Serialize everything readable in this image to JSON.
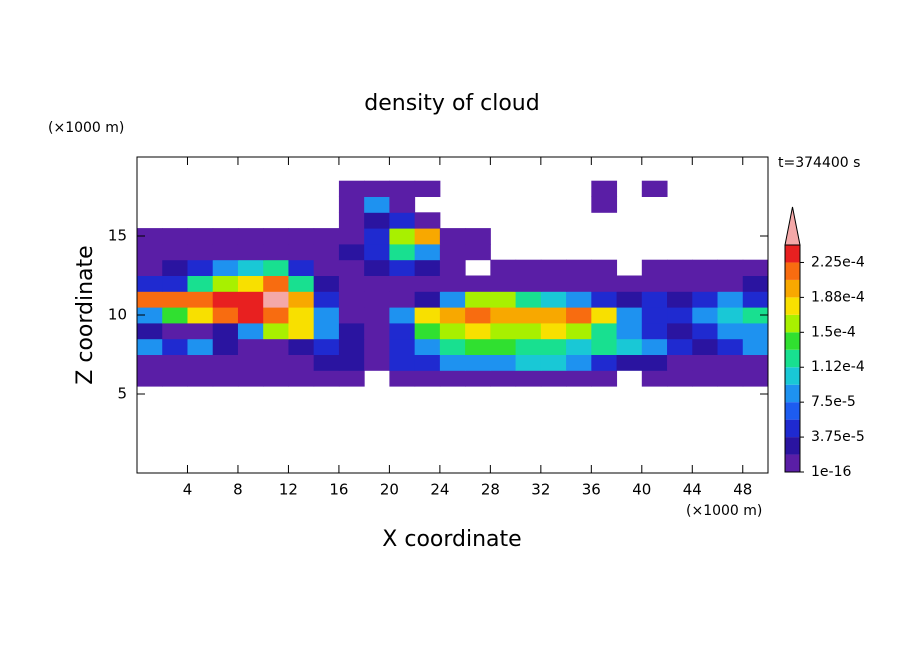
{
  "chart_data": {
    "type": "contour",
    "title": "density of cloud",
    "xlabel": "X coordinate",
    "ylabel": "Z coordinate",
    "xunit": "(×1000 m)",
    "yunit": "(×1000 m)",
    "annotation": "t=374400 s",
    "xlim": [
      0,
      50
    ],
    "xticks": [
      4,
      8,
      12,
      16,
      20,
      24,
      28,
      32,
      36,
      40,
      44,
      48
    ],
    "ylim": [
      0,
      20
    ],
    "yticks": [
      5,
      10,
      15
    ],
    "x": [
      1,
      3,
      5,
      7,
      9,
      11,
      13,
      15,
      17,
      19,
      21,
      23,
      25,
      27,
      29,
      31,
      33,
      35,
      37,
      39,
      41,
      43,
      45,
      47,
      49
    ],
    "y": [
      6,
      7,
      8,
      9,
      10,
      11,
      12,
      13,
      14,
      15,
      16,
      17,
      18
    ],
    "z": [
      [
        1e-05,
        1e-05,
        1e-05,
        1e-05,
        1e-05,
        1e-05,
        1e-05,
        1e-05,
        1e-05,
        null,
        1e-05,
        1e-05,
        1e-05,
        1e-05,
        1e-05,
        1e-05,
        1e-05,
        1e-05,
        1e-05,
        null,
        1e-05,
        1e-05,
        1e-05,
        1e-05,
        1e-05
      ],
      [
        1e-05,
        1e-05,
        1e-05,
        1e-05,
        1e-05,
        1e-05,
        1e-05,
        3e-05,
        3e-05,
        1e-05,
        5e-05,
        5e-05,
        8e-05,
        8e-05,
        8e-05,
        0.0001,
        0.0001,
        8e-05,
        5e-05,
        3e-05,
        3e-05,
        1e-05,
        1e-05,
        1e-05,
        1e-05
      ],
      [
        8e-05,
        5e-05,
        8e-05,
        3e-05,
        1e-05,
        1e-05,
        3e-05,
        5e-05,
        3e-05,
        1e-05,
        5e-05,
        8e-05,
        0.00012,
        0.00014,
        0.00014,
        0.00012,
        0.00012,
        0.0001,
        0.00012,
        0.0001,
        8e-05,
        5e-05,
        3e-05,
        5e-05,
        8e-05
      ],
      [
        3e-05,
        1e-05,
        1e-05,
        3e-05,
        8e-05,
        0.00016,
        0.00018,
        8e-05,
        3e-05,
        1e-05,
        5e-05,
        0.00014,
        0.00016,
        0.00018,
        0.00016,
        0.00016,
        0.00018,
        0.00016,
        0.00012,
        8e-05,
        5e-05,
        3e-05,
        5e-05,
        8e-05,
        8e-05
      ],
      [
        8e-05,
        0.00014,
        0.00018,
        0.00022,
        0.00023,
        0.00022,
        0.00018,
        8e-05,
        1e-05,
        1e-05,
        8e-05,
        0.00018,
        0.0002,
        0.00022,
        0.0002,
        0.0002,
        0.0002,
        0.00022,
        0.00018,
        8e-05,
        5e-05,
        5e-05,
        8e-05,
        0.0001,
        0.00012
      ],
      [
        0.00022,
        0.00022,
        0.00022,
        0.00023,
        0.00023,
        0.00025,
        0.0002,
        5e-05,
        1e-05,
        1e-05,
        1e-05,
        3e-05,
        8e-05,
        0.00016,
        0.00016,
        0.00012,
        0.0001,
        8e-05,
        5e-05,
        3e-05,
        5e-05,
        3e-05,
        5e-05,
        8e-05,
        5e-05
      ],
      [
        5e-05,
        5e-05,
        0.00012,
        0.00016,
        0.00018,
        0.00022,
        0.00012,
        3e-05,
        1e-05,
        1e-05,
        1e-05,
        1e-05,
        1e-05,
        1e-05,
        1e-05,
        1e-05,
        1e-05,
        1e-05,
        1e-05,
        1e-05,
        1e-05,
        1e-05,
        1e-05,
        1e-05,
        3e-05
      ],
      [
        1e-05,
        3e-05,
        5e-05,
        8e-05,
        0.0001,
        0.00012,
        5e-05,
        1e-05,
        1e-05,
        3e-05,
        5e-05,
        3e-05,
        1e-05,
        null,
        1e-05,
        1e-05,
        1e-05,
        1e-05,
        1e-05,
        null,
        1e-05,
        1e-05,
        1e-05,
        1e-05,
        1e-05
      ],
      [
        1e-05,
        1e-05,
        1e-05,
        1e-05,
        1e-05,
        1e-05,
        1e-05,
        1e-05,
        3e-05,
        5e-05,
        0.00012,
        8e-05,
        1e-05,
        1e-05,
        null,
        null,
        null,
        null,
        null,
        null,
        null,
        null,
        null,
        null,
        null
      ],
      [
        1e-05,
        1e-05,
        1e-05,
        1e-05,
        1e-05,
        1e-05,
        1e-05,
        1e-05,
        1e-05,
        5e-05,
        0.00016,
        0.0002,
        1e-05,
        1e-05,
        null,
        null,
        null,
        null,
        null,
        null,
        null,
        null,
        null,
        null,
        null
      ],
      [
        null,
        null,
        null,
        null,
        null,
        null,
        null,
        null,
        1e-05,
        3e-05,
        5e-05,
        1e-05,
        null,
        null,
        null,
        null,
        null,
        null,
        null,
        null,
        null,
        null,
        null,
        null,
        null
      ],
      [
        null,
        null,
        null,
        null,
        null,
        null,
        null,
        null,
        1e-05,
        8e-05,
        1e-05,
        null,
        null,
        null,
        null,
        null,
        null,
        null,
        1e-05,
        null,
        null,
        null,
        null,
        null,
        null
      ],
      [
        null,
        null,
        null,
        null,
        null,
        null,
        null,
        null,
        1e-05,
        1e-05,
        1e-05,
        1e-05,
        null,
        null,
        null,
        null,
        null,
        null,
        1e-05,
        null,
        1e-05,
        null,
        null,
        null,
        null
      ]
    ],
    "levels": [
      1e-16,
      1.875e-05,
      3.75e-05,
      5.625e-05,
      7.5e-05,
      9.375e-05,
      0.0001125,
      0.00013125,
      0.00015,
      0.00016875,
      0.0001875,
      0.00020625,
      0.000225,
      0.00024375
    ],
    "colors": [
      "#5a1ea6",
      "#2a14a0",
      "#1f2ad0",
      "#1d5cf0",
      "#1e92f0",
      "#19c8d6",
      "#18e090",
      "#30e030",
      "#a8f000",
      "#f8e000",
      "#f8a800",
      "#f86c10",
      "#e82020"
    ],
    "extend_color": "#f4a8a8",
    "colorbar_ticks": [
      {
        "value": 1e-16,
        "label": "1e-16"
      },
      {
        "value": 3.75e-05,
        "label": "3.75e-5"
      },
      {
        "value": 7.5e-05,
        "label": "7.5e-5"
      },
      {
        "value": 0.0001125,
        "label": "1.12e-4"
      },
      {
        "value": 0.00015,
        "label": "1.5e-4"
      },
      {
        "value": 0.0001875,
        "label": "1.88e-4"
      },
      {
        "value": 0.000225,
        "label": "2.25e-4"
      }
    ]
  }
}
